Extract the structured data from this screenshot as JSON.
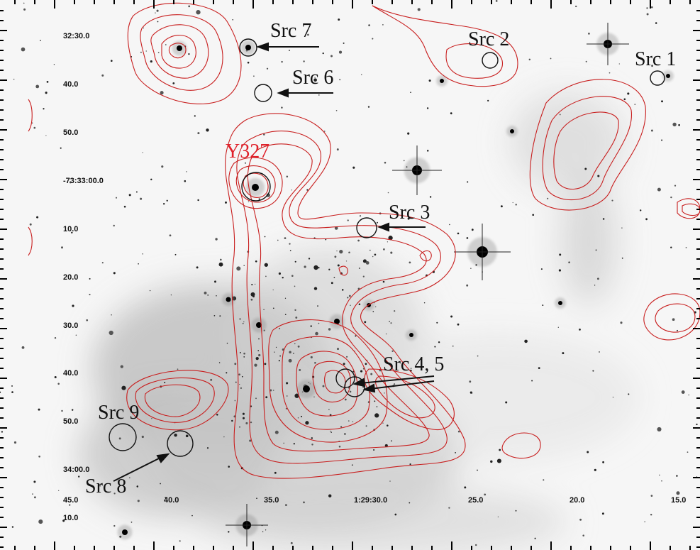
{
  "image": {
    "contour_color": "#c81e1e",
    "label_color_default": "#111111",
    "label_color_highlight": "#e0202a"
  },
  "dec_labels": [
    "32:30.0",
    "40.0",
    "50.0",
    "-73:33:00.0",
    "10.0",
    "20.0",
    "30.0",
    "40.0",
    "50.0",
    "34:00.0",
    "10.0"
  ],
  "ra_labels": [
    "45.0",
    "40.0",
    "35.0",
    "1:29:30.0",
    "25.0",
    "20.0",
    "15.0"
  ],
  "sources": [
    {
      "key": "src7",
      "label": "Src 7"
    },
    {
      "key": "src2",
      "label": "Src 2"
    },
    {
      "key": "src1",
      "label": "Src 1"
    },
    {
      "key": "src6",
      "label": "Src 6"
    },
    {
      "key": "y327",
      "label": "Y327"
    },
    {
      "key": "src3",
      "label": "Src 3"
    },
    {
      "key": "src45",
      "label": "Src 4, 5"
    },
    {
      "key": "src9",
      "label": "Src 9"
    },
    {
      "key": "src8",
      "label": "Src 8"
    }
  ]
}
